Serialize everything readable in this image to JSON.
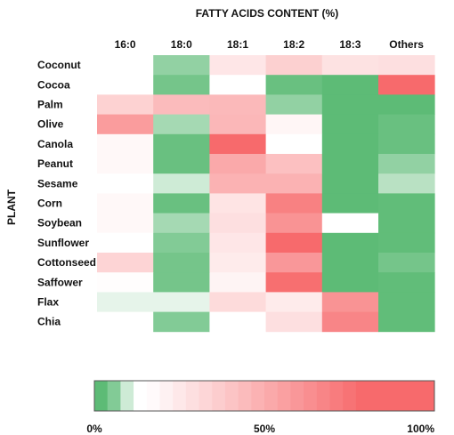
{
  "chart_data": {
    "type": "heatmap",
    "title": "FATTY ACIDS CONTENT (%)",
    "ylabel": "PLANT",
    "columns": [
      "16:0",
      "18:0",
      "18:1",
      "18:2",
      "18:3",
      "Others"
    ],
    "rows": [
      "Coconut",
      "Cocoa",
      "Palm",
      "Olive",
      "Canola",
      "Peanut",
      "Sesame",
      "Corn",
      "Soybean",
      "Sunflower",
      "Cottonseed",
      "Saffower",
      "Flax",
      "Chia"
    ],
    "values": [
      [
        12,
        5,
        25,
        35,
        27,
        28
      ],
      [
        13,
        3,
        12,
        2,
        0,
        80
      ],
      [
        34,
        44,
        45,
        5,
        0,
        0
      ],
      [
        58,
        6,
        46,
        18,
        0,
        2
      ],
      [
        17,
        2,
        83,
        14,
        0,
        2
      ],
      [
        17,
        2,
        52,
        42,
        0,
        5
      ],
      [
        14,
        8,
        48,
        48,
        0,
        7
      ],
      [
        17,
        2,
        26,
        70,
        0,
        1
      ],
      [
        17,
        6,
        28,
        62,
        11,
        1
      ],
      [
        14,
        4,
        25,
        80,
        0,
        1
      ],
      [
        33,
        3,
        23,
        60,
        0,
        3
      ],
      [
        15,
        3,
        19,
        78,
        0,
        1
      ],
      [
        9,
        9,
        30,
        23,
        62,
        1
      ],
      [
        14,
        4,
        13,
        28,
        68,
        1
      ]
    ],
    "colorbar": {
      "tick_labels": [
        "0%",
        "50%",
        "100%"
      ],
      "range": [
        0,
        100
      ],
      "low_color": "#5dbb76",
      "mid_color": "#ffffff",
      "high_color": "#f76a6c"
    }
  }
}
